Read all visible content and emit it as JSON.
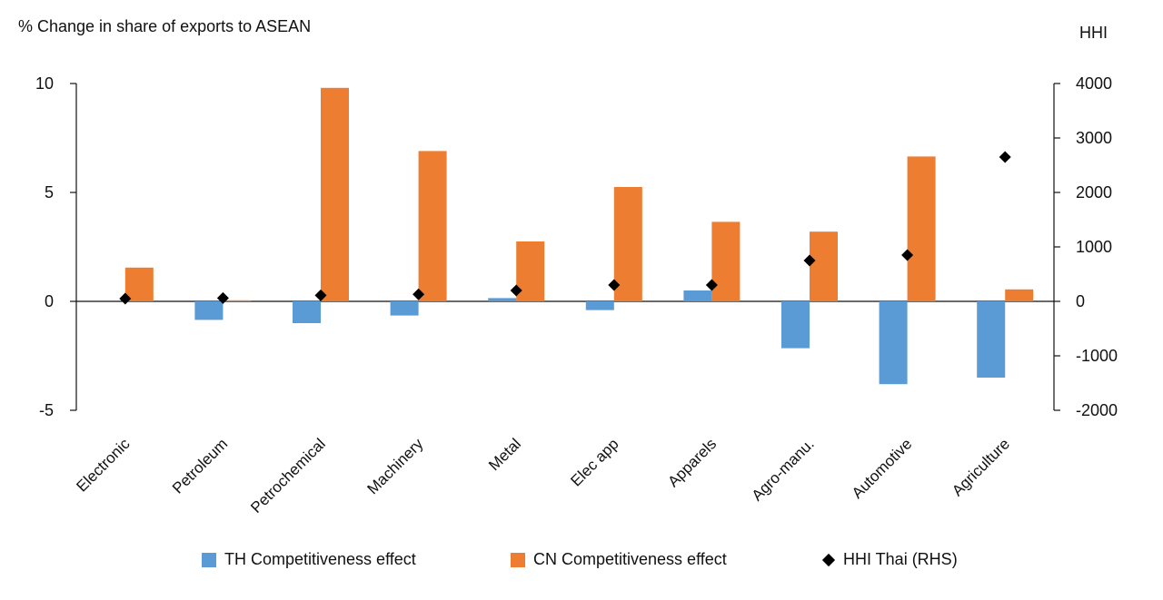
{
  "chart_data": {
    "type": "bar",
    "ylabel": "% Change in share of exports to ASEAN",
    "y2label": "HHI",
    "categories": [
      "Electronic",
      "Petroleum",
      "Petrochemical",
      "Machinery",
      "Metal",
      "Elec app",
      "Apparels",
      "Agro-manu.",
      "Automotive",
      "Agriculture"
    ],
    "ylim": [
      -5,
      10
    ],
    "yticks": [
      -5,
      0,
      5,
      10
    ],
    "y2lim": [
      -2000,
      4000
    ],
    "y2ticks": [
      -2000,
      -1000,
      0,
      1000,
      2000,
      3000,
      4000
    ],
    "series": [
      {
        "name": "TH Competitiveness effect",
        "kind": "bar",
        "axis": "left",
        "color": "#5B9BD5",
        "values": [
          0.0,
          -0.85,
          -1.0,
          -0.65,
          0.15,
          -0.4,
          0.5,
          -2.15,
          -3.8,
          -3.5
        ]
      },
      {
        "name": "CN Competitiveness effect",
        "kind": "bar",
        "axis": "left",
        "color": "#ED7D31",
        "values": [
          1.55,
          0.05,
          9.8,
          6.9,
          2.75,
          5.25,
          3.65,
          3.2,
          6.65,
          0.55
        ]
      },
      {
        "name": "HHI Thai (RHS)",
        "kind": "marker",
        "axis": "right",
        "color": "#000000",
        "values": [
          50,
          60,
          110,
          130,
          200,
          300,
          300,
          750,
          850,
          2650
        ]
      }
    ]
  }
}
